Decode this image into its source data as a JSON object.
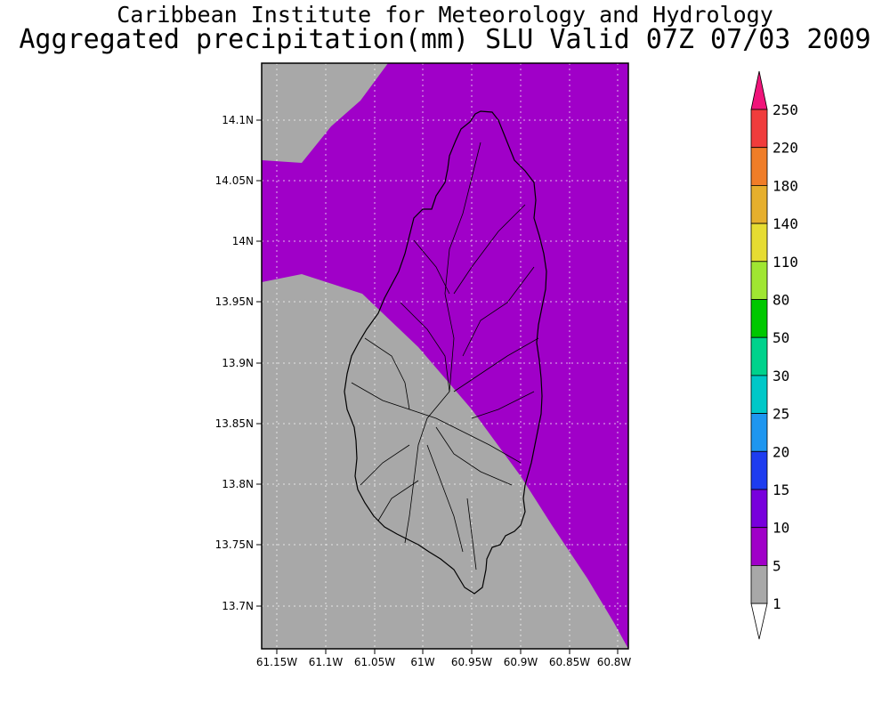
{
  "header": {
    "institution": "Caribbean Institute for Meteorology and Hydrology",
    "product": "Aggregated precipitation(mm) SLU Valid 07Z 07/03 2009"
  },
  "map": {
    "lat_ticks": [
      "14.1N",
      "14.05N",
      "14N",
      "13.95N",
      "13.9N",
      "13.85N",
      "13.8N",
      "13.75N",
      "13.7N"
    ],
    "lon_ticks": [
      "61.15W",
      "61.1W",
      "61.05W",
      "61W",
      "60.95W",
      "60.9W",
      "60.85W",
      "60.8W"
    ],
    "fields": [
      {
        "class": "5-10",
        "color": "#a000c8"
      },
      {
        "class": "1-5",
        "color": "#a8a8a8"
      }
    ]
  },
  "legend": {
    "labels": [
      "250",
      "220",
      "180",
      "140",
      "110",
      "80",
      "50",
      "30",
      "25",
      "20",
      "15",
      "10",
      "5",
      "1"
    ],
    "colors": [
      "#f0147a",
      "#f03c3c",
      "#f07d28",
      "#e6af2d",
      "#e6dc32",
      "#a0e632",
      "#00c800",
      "#00d28c",
      "#00c8c8",
      "#1e96f0",
      "#1e3cf0",
      "#7800dc",
      "#a000c8",
      "#a8a8a8",
      "#ffffff"
    ]
  }
}
